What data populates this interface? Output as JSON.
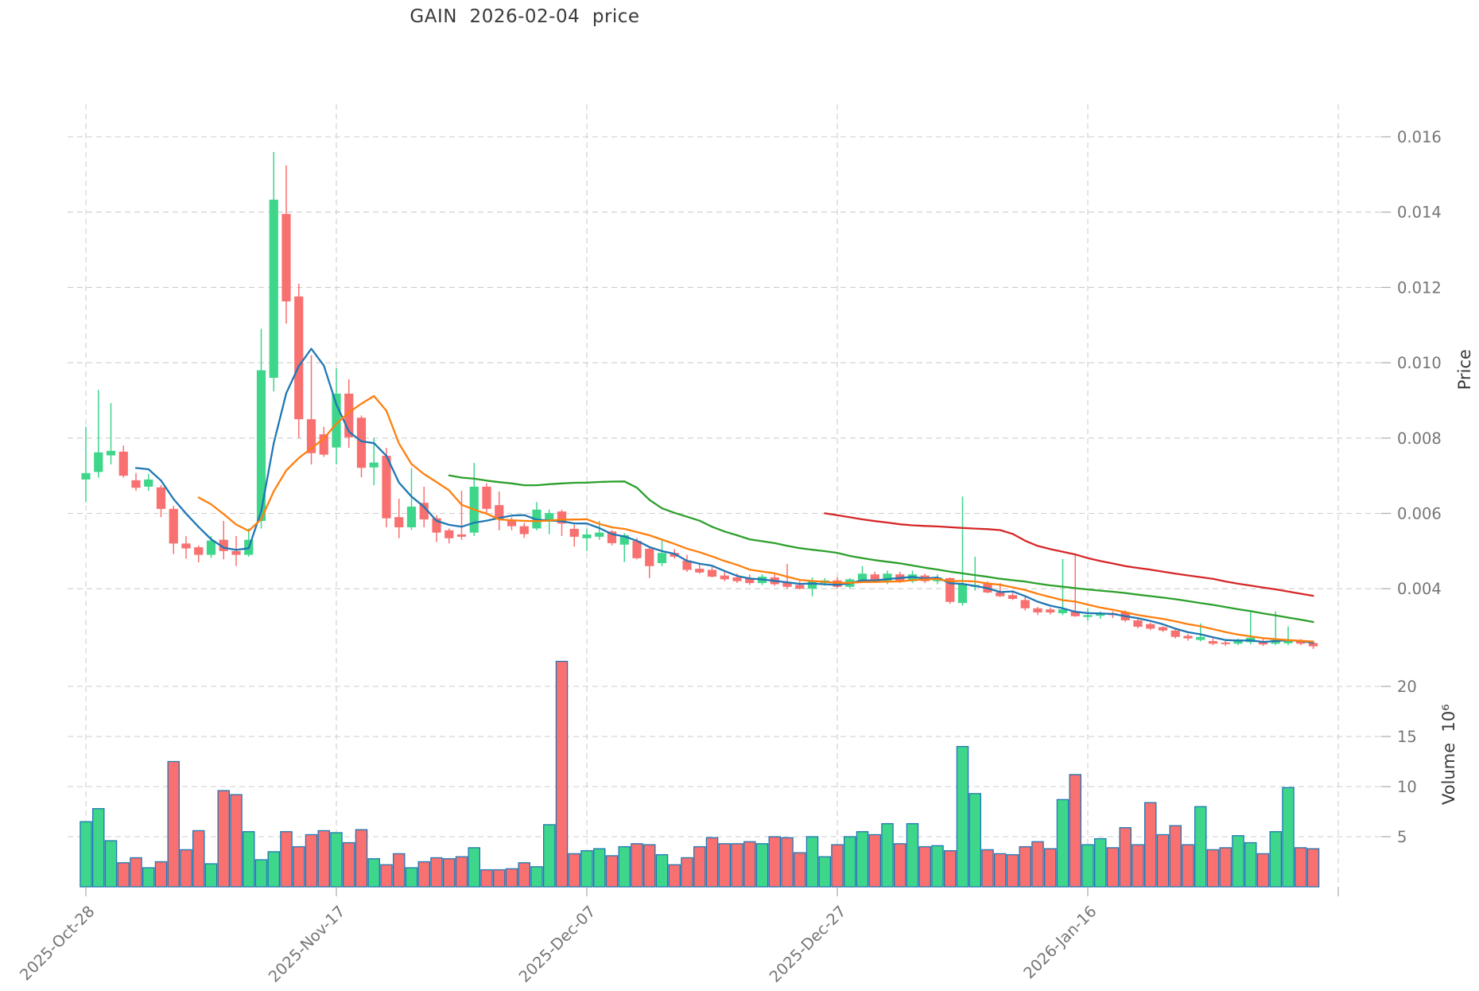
{
  "title": "GAIN  2026-02-04  price",
  "chart_data": {
    "type": "candlestick",
    "title": "GAIN  2026-02-04  price",
    "legend_position": "none",
    "grid": true,
    "x_axis": {
      "tick_labels": [
        "2025-Oct-28",
        "2025-Nov-17",
        "2025-Dec-07",
        "2025-Dec-27",
        "2026-Jan-16"
      ],
      "tick_indices": [
        0,
        20,
        40,
        60,
        80
      ],
      "unlabeled_gridline_index": 100,
      "bars_per_gridline": 20
    },
    "price_axis": {
      "label": "Price",
      "side": "right",
      "ticks": [
        {
          "label": "0.016",
          "value": 0.016
        },
        {
          "label": "0.014",
          "value": 0.014
        },
        {
          "label": "0.012",
          "value": 0.012
        },
        {
          "label": "0.010",
          "value": 0.01
        },
        {
          "label": "0.008",
          "value": 0.008
        },
        {
          "label": "0.006",
          "value": 0.006
        },
        {
          "label": "0.004",
          "value": 0.004
        }
      ],
      "range": [
        0.00228,
        0.01672
      ]
    },
    "volume_axis": {
      "label": "Volume",
      "unit": "10⁶",
      "side": "right",
      "ticks": [
        {
          "label": "20",
          "value": 20
        },
        {
          "label": "15",
          "value": 15
        },
        {
          "label": "10",
          "value": 10
        },
        {
          "label": "5",
          "value": 5
        }
      ],
      "range": [
        0,
        22.8
      ]
    },
    "moving_averages": [
      {
        "period": 5,
        "color": "#1f77b4"
      },
      {
        "period": 10,
        "color": "#ff7f0e"
      },
      {
        "period": 30,
        "color": "#2ca02c"
      },
      {
        "period": 60,
        "color": "#d62728"
      }
    ],
    "colors": {
      "up": "#3ed68b",
      "down": "#f87070",
      "volume_bar_edge": "#1f77b4",
      "grid": "#cdcdcd",
      "tick": "#b0b0b0",
      "tick_text": "#757575",
      "axis_label_text": "#3a3a3a",
      "title_text": "#3a3a3a",
      "background": "#ffffff"
    },
    "candle_fields": [
      "date",
      "open",
      "high",
      "low",
      "close",
      "volume_millions"
    ],
    "candles": [
      [
        "2025-10-28",
        0.0069,
        0.0083,
        0.0063,
        0.00707,
        6.5
      ],
      [
        "2025-10-29",
        0.0071,
        0.00928,
        0.00695,
        0.00762,
        7.8
      ],
      [
        "2025-10-30",
        0.00754,
        0.00893,
        0.0073,
        0.00766,
        4.6
      ],
      [
        "2025-10-31",
        0.00764,
        0.0078,
        0.00695,
        0.007,
        2.4
      ],
      [
        "2025-11-01",
        0.00688,
        0.00707,
        0.0066,
        0.00668,
        2.9
      ],
      [
        "2025-11-02",
        0.00671,
        0.00705,
        0.0066,
        0.0069,
        1.9
      ],
      [
        "2025-11-03",
        0.00669,
        0.00675,
        0.0059,
        0.00612,
        2.5
      ],
      [
        "2025-11-04",
        0.00612,
        0.0062,
        0.00492,
        0.0052,
        12.5
      ],
      [
        "2025-11-05",
        0.0052,
        0.0054,
        0.0048,
        0.00507,
        3.7
      ],
      [
        "2025-11-06",
        0.0051,
        0.00515,
        0.0047,
        0.0049,
        5.6
      ],
      [
        "2025-11-07",
        0.0049,
        0.0054,
        0.00482,
        0.00528,
        2.3
      ],
      [
        "2025-11-08",
        0.0053,
        0.0058,
        0.00478,
        0.005,
        9.6
      ],
      [
        "2025-11-09",
        0.005,
        0.0054,
        0.0046,
        0.0049,
        9.2
      ],
      [
        "2025-11-10",
        0.0049,
        0.0056,
        0.00485,
        0.0053,
        5.5
      ],
      [
        "2025-11-11",
        0.0058,
        0.0109,
        0.0056,
        0.0098,
        2.7
      ],
      [
        "2025-11-12",
        0.0096,
        0.0156,
        0.00924,
        0.01433,
        3.5
      ],
      [
        "2025-11-13",
        0.01395,
        0.01524,
        0.01104,
        0.01163,
        5.5
      ],
      [
        "2025-11-14",
        0.01176,
        0.0121,
        0.008,
        0.0085,
        4.0
      ],
      [
        "2025-11-15",
        0.0085,
        0.0102,
        0.0073,
        0.0076,
        5.2
      ],
      [
        "2025-11-16",
        0.0081,
        0.0083,
        0.0075,
        0.00756,
        5.6
      ],
      [
        "2025-11-17",
        0.00775,
        0.00986,
        0.0073,
        0.00918,
        5.4
      ],
      [
        "2025-11-18",
        0.00918,
        0.00956,
        0.00774,
        0.00802,
        4.4
      ],
      [
        "2025-11-19",
        0.00854,
        0.0086,
        0.00696,
        0.00721,
        5.7
      ],
      [
        "2025-11-20",
        0.00722,
        0.008,
        0.00675,
        0.00735,
        2.8
      ],
      [
        "2025-11-21",
        0.00753,
        0.00774,
        0.00563,
        0.00587,
        2.2
      ],
      [
        "2025-11-22",
        0.0059,
        0.00639,
        0.00534,
        0.00563,
        3.3
      ],
      [
        "2025-11-23",
        0.00563,
        0.0072,
        0.00556,
        0.00618,
        1.9
      ],
      [
        "2025-11-24",
        0.00628,
        0.00671,
        0.00563,
        0.00584,
        2.5
      ],
      [
        "2025-11-25",
        0.00587,
        0.00595,
        0.00524,
        0.00549,
        2.9
      ],
      [
        "2025-11-26",
        0.00555,
        0.0056,
        0.0052,
        0.00534,
        2.8
      ],
      [
        "2025-11-27",
        0.00544,
        0.0066,
        0.0053,
        0.00538,
        3.0
      ],
      [
        "2025-11-28",
        0.00549,
        0.00734,
        0.0054,
        0.00671,
        3.9
      ],
      [
        "2025-11-29",
        0.00671,
        0.0068,
        0.006,
        0.00612,
        1.7
      ],
      [
        "2025-11-30",
        0.00622,
        0.00658,
        0.00555,
        0.00584,
        1.7
      ],
      [
        "2025-12-01",
        0.0058,
        0.0059,
        0.00555,
        0.00566,
        1.8
      ],
      [
        "2025-12-02",
        0.00566,
        0.00575,
        0.00535,
        0.00545,
        2.4
      ],
      [
        "2025-12-03",
        0.0056,
        0.0063,
        0.00555,
        0.0061,
        2.0
      ],
      [
        "2025-12-04",
        0.00578,
        0.0061,
        0.00545,
        0.00601,
        6.2
      ],
      [
        "2025-12-05",
        0.00605,
        0.0061,
        0.0054,
        0.00573,
        22.5
      ],
      [
        "2025-12-06",
        0.00559,
        0.0057,
        0.00512,
        0.00538,
        3.3
      ],
      [
        "2025-12-07",
        0.00534,
        0.0056,
        0.005,
        0.00544,
        3.6
      ],
      [
        "2025-12-08",
        0.00538,
        0.0058,
        0.0053,
        0.00549,
        3.8
      ],
      [
        "2025-12-09",
        0.00552,
        0.00556,
        0.00515,
        0.00521,
        3.1
      ],
      [
        "2025-12-10",
        0.00517,
        0.00548,
        0.00471,
        0.00542,
        4.0
      ],
      [
        "2025-12-11",
        0.00527,
        0.00535,
        0.00478,
        0.00481,
        4.3
      ],
      [
        "2025-12-12",
        0.00506,
        0.0051,
        0.00428,
        0.0046,
        4.2
      ],
      [
        "2025-12-13",
        0.00468,
        0.00527,
        0.0046,
        0.00495,
        3.2
      ],
      [
        "2025-12-14",
        0.00495,
        0.00505,
        0.0048,
        0.00485,
        2.2
      ],
      [
        "2025-12-15",
        0.00475,
        0.0049,
        0.00445,
        0.0045,
        2.9
      ],
      [
        "2025-12-16",
        0.00453,
        0.00468,
        0.0044,
        0.00443,
        4.0
      ],
      [
        "2025-12-17",
        0.0045,
        0.00458,
        0.0043,
        0.00432,
        4.9
      ],
      [
        "2025-12-18",
        0.00435,
        0.00445,
        0.0042,
        0.00425,
        4.3
      ],
      [
        "2025-12-19",
        0.0043,
        0.0044,
        0.00415,
        0.0042,
        4.3
      ],
      [
        "2025-12-20",
        0.00428,
        0.00438,
        0.0041,
        0.00415,
        4.5
      ],
      [
        "2025-12-21",
        0.00415,
        0.00438,
        0.0041,
        0.00432,
        4.3
      ],
      [
        "2025-12-22",
        0.0043,
        0.0044,
        0.00408,
        0.00412,
        5.0
      ],
      [
        "2025-12-23",
        0.00418,
        0.00466,
        0.004,
        0.00405,
        4.9
      ],
      [
        "2025-12-24",
        0.0041,
        0.0042,
        0.00398,
        0.004,
        3.4
      ],
      [
        "2025-12-25",
        0.004,
        0.0043,
        0.0038,
        0.0042,
        5.0
      ],
      [
        "2025-12-26",
        0.00415,
        0.00428,
        0.00408,
        0.00422,
        3.0
      ],
      [
        "2025-12-27",
        0.00422,
        0.0043,
        0.004,
        0.00405,
        4.2
      ],
      [
        "2025-12-28",
        0.00405,
        0.00428,
        0.004,
        0.00425,
        5.0
      ],
      [
        "2025-12-29",
        0.00422,
        0.0046,
        0.00418,
        0.0044,
        5.5
      ],
      [
        "2025-12-30",
        0.00438,
        0.00445,
        0.00415,
        0.00418,
        5.2
      ],
      [
        "2025-12-31",
        0.00418,
        0.00448,
        0.00412,
        0.0044,
        6.3
      ],
      [
        "2026-01-01",
        0.00438,
        0.00445,
        0.00415,
        0.0042,
        4.3
      ],
      [
        "2026-01-02",
        0.0042,
        0.00448,
        0.00415,
        0.00438,
        6.3
      ],
      [
        "2026-01-03",
        0.00435,
        0.0044,
        0.00415,
        0.0042,
        4.0
      ],
      [
        "2026-01-04",
        0.0042,
        0.00438,
        0.00412,
        0.0043,
        4.1
      ],
      [
        "2026-01-05",
        0.00428,
        0.0043,
        0.0036,
        0.00365,
        3.6
      ],
      [
        "2026-01-06",
        0.00362,
        0.00645,
        0.00355,
        0.00411,
        14.0
      ],
      [
        "2026-01-07",
        0.00405,
        0.00485,
        0.00395,
        0.0041,
        9.3
      ],
      [
        "2026-01-08",
        0.00415,
        0.0042,
        0.00388,
        0.0039,
        3.7
      ],
      [
        "2026-01-09",
        0.0039,
        0.00415,
        0.00378,
        0.0038,
        3.3
      ],
      [
        "2026-01-10",
        0.00383,
        0.0039,
        0.0037,
        0.00373,
        3.2
      ],
      [
        "2026-01-11",
        0.0037,
        0.00378,
        0.00342,
        0.00348,
        4.0
      ],
      [
        "2026-01-12",
        0.00348,
        0.00352,
        0.0033,
        0.00337,
        4.5
      ],
      [
        "2026-01-13",
        0.00345,
        0.0035,
        0.00332,
        0.00337,
        3.8
      ],
      [
        "2026-01-14",
        0.00335,
        0.00479,
        0.0033,
        0.00345,
        8.7
      ],
      [
        "2026-01-15",
        0.0034,
        0.00491,
        0.00325,
        0.00327,
        11.2
      ],
      [
        "2026-01-16",
        0.00325,
        0.00349,
        0.00315,
        0.0033,
        4.2
      ],
      [
        "2026-01-17",
        0.00328,
        0.0034,
        0.0032,
        0.00333,
        4.8
      ],
      [
        "2026-01-18",
        0.00335,
        0.0034,
        0.00322,
        0.0033,
        3.9
      ],
      [
        "2026-01-19",
        0.00338,
        0.00342,
        0.00312,
        0.00316,
        5.9
      ],
      [
        "2026-01-20",
        0.00316,
        0.0032,
        0.00295,
        0.00299,
        4.2
      ],
      [
        "2026-01-21",
        0.00306,
        0.0031,
        0.0029,
        0.00294,
        8.4
      ],
      [
        "2026-01-22",
        0.00298,
        0.003,
        0.00285,
        0.00289,
        5.2
      ],
      [
        "2026-01-23",
        0.00289,
        0.00292,
        0.00268,
        0.00272,
        6.1
      ],
      [
        "2026-01-24",
        0.00275,
        0.0028,
        0.00262,
        0.00268,
        4.2
      ],
      [
        "2026-01-25",
        0.00264,
        0.00308,
        0.0026,
        0.00272,
        8.0
      ],
      [
        "2026-01-26",
        0.00261,
        0.00268,
        0.0025,
        0.00254,
        3.7
      ],
      [
        "2026-01-27",
        0.00257,
        0.00262,
        0.00248,
        0.00253,
        3.9
      ],
      [
        "2026-01-28",
        0.00254,
        0.00268,
        0.0025,
        0.00265,
        5.1
      ],
      [
        "2026-01-29",
        0.00258,
        0.0034,
        0.00252,
        0.0027,
        4.4
      ],
      [
        "2026-01-30",
        0.00261,
        0.00266,
        0.00248,
        0.00252,
        3.3
      ],
      [
        "2026-01-31",
        0.00254,
        0.0034,
        0.0025,
        0.00265,
        5.5
      ],
      [
        "2026-02-01",
        0.00255,
        0.003,
        0.0025,
        0.00264,
        9.9
      ],
      [
        "2026-02-02",
        0.00262,
        0.00266,
        0.0025,
        0.00254,
        3.9
      ],
      [
        "2026-02-03",
        0.00256,
        0.0026,
        0.0024,
        0.00247,
        3.8
      ]
    ]
  }
}
